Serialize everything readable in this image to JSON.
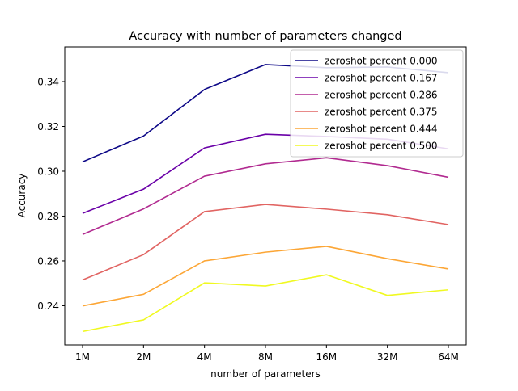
{
  "chart_data": {
    "type": "line",
    "title": "Accuracy with number of parameters changed",
    "xlabel": "number of parameters",
    "ylabel": "Accuracy",
    "categories": [
      "1M",
      "2M",
      "4M",
      "8M",
      "16M",
      "32M",
      "64M"
    ],
    "ylim": [
      0.2225,
      0.3555
    ],
    "yticks": [
      0.24,
      0.26,
      0.28,
      0.3,
      0.32,
      0.34
    ],
    "ytick_labels": [
      "0.24",
      "0.26",
      "0.28",
      "0.30",
      "0.32",
      "0.34"
    ],
    "grid": false,
    "legend_position": "top-right",
    "series": [
      {
        "name": "zeroshot percent 0.000",
        "color": "#0d0887",
        "values": [
          0.3042,
          0.3157,
          0.3365,
          0.3476,
          0.3462,
          0.3465,
          0.344
        ]
      },
      {
        "name": "zeroshot percent 0.167",
        "color": "#6a00a8",
        "values": [
          0.2812,
          0.292,
          0.3104,
          0.3165,
          0.3155,
          0.3143,
          0.31
        ]
      },
      {
        "name": "zeroshot percent 0.286",
        "color": "#b12a90",
        "values": [
          0.2718,
          0.2832,
          0.2978,
          0.3033,
          0.306,
          0.3025,
          0.2973
        ]
      },
      {
        "name": "zeroshot percent 0.375",
        "color": "#e16462",
        "values": [
          0.2515,
          0.2628,
          0.282,
          0.2852,
          0.2831,
          0.2806,
          0.2762
        ]
      },
      {
        "name": "zeroshot percent 0.444",
        "color": "#fca636",
        "values": [
          0.2399,
          0.2451,
          0.26,
          0.2639,
          0.2665,
          0.261,
          0.2564
        ]
      },
      {
        "name": "zeroshot percent 0.500",
        "color": "#f0f921",
        "values": [
          0.2285,
          0.2337,
          0.2502,
          0.2488,
          0.2538,
          0.2446,
          0.2471
        ]
      }
    ]
  }
}
